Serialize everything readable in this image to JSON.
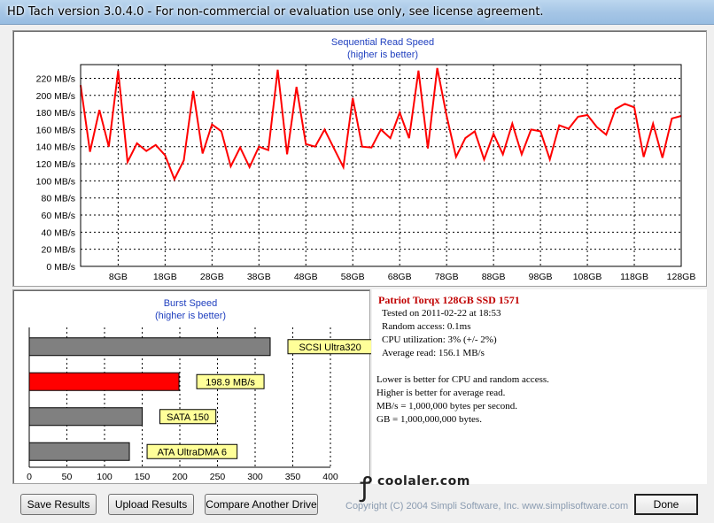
{
  "window": {
    "title": "HD Tach version 3.0.4.0  - For non-commercial or evaluation use only, see license agreement."
  },
  "sequential": {
    "title": "Sequential Read Speed",
    "subtitle": "(higher is better)",
    "chart_data": {
      "type": "line",
      "title": "Sequential Read Speed",
      "subtitle": "(higher is better)",
      "xlabel": "",
      "ylabel": "",
      "x_tick_labels": [
        "8GB",
        "18GB",
        "28GB",
        "38GB",
        "48GB",
        "58GB",
        "68GB",
        "78GB",
        "88GB",
        "98GB",
        "108GB",
        "118GB",
        "128GB"
      ],
      "y_tick_labels": [
        "0 MB/s",
        "20 MB/s",
        "40 MB/s",
        "60 MB/s",
        "80 MB/s",
        "100 MB/s",
        "120 MB/s",
        "140 MB/s",
        "160 MB/s",
        "180 MB/s",
        "200 MB/s",
        "220 MB/s"
      ],
      "xlim": [
        0,
        128
      ],
      "ylim": [
        0,
        236
      ],
      "grid": true,
      "color": "#ff0000",
      "x": [
        0,
        2,
        4,
        6,
        8,
        10,
        12,
        14,
        16,
        18,
        20,
        22,
        24,
        26,
        28,
        30,
        32,
        34,
        36,
        38,
        40,
        42,
        44,
        46,
        48,
        50,
        52,
        54,
        56,
        58,
        60,
        62,
        64,
        66,
        68,
        70,
        72,
        74,
        76,
        78,
        80,
        82,
        84,
        86,
        88,
        90,
        92,
        94,
        96,
        98,
        100,
        102,
        104,
        106,
        108,
        110,
        112,
        114,
        116,
        118,
        120,
        122,
        124,
        126,
        128
      ],
      "values": [
        212,
        134,
        183,
        140,
        229,
        122,
        144,
        135,
        142,
        130,
        102,
        124,
        205,
        132,
        166,
        158,
        117,
        139,
        116,
        140,
        136,
        230,
        131,
        210,
        143,
        140,
        160,
        138,
        116,
        197,
        140,
        139,
        160,
        150,
        180,
        150,
        229,
        138,
        232,
        176,
        128,
        150,
        158,
        125,
        155,
        131,
        167,
        131,
        160,
        158,
        125,
        165,
        161,
        175,
        177,
        163,
        154,
        184,
        190,
        186,
        128,
        167,
        127,
        173,
        176
      ]
    }
  },
  "burst": {
    "title": "Burst Speed",
    "subtitle": "(higher is better)",
    "chart_data": {
      "type": "bar",
      "orientation": "horizontal",
      "title": "Burst Speed",
      "subtitle": "(higher is better)",
      "categories": [
        "SCSI Ultra320",
        "198.9 MB/s",
        "SATA 150",
        "ATA UltraDMA 6"
      ],
      "values": [
        320,
        198.9,
        150,
        133
      ],
      "colors": [
        "#808080",
        "#ff0000",
        "#808080",
        "#808080"
      ],
      "xlim": [
        0,
        400
      ],
      "x_tick_labels": [
        "0",
        "50",
        "100",
        "150",
        "200",
        "250",
        "300",
        "350",
        "400"
      ],
      "grid": true
    }
  },
  "info": {
    "drive_name": "Patriot Torqx 128GB SSD 1571",
    "tested_on": "Tested on 2011-02-22 at 18:53",
    "random_access": "Random access: 0.1ms",
    "cpu_utilization": "CPU utilization: 3% (+/- 2%)",
    "average_read": "Average read: 156.1 MB/s",
    "note_1": "Lower is better for CPU and random access.",
    "note_2": "Higher is better for average read.",
    "note_3": "MB/s = 1,000,000 bytes per second.",
    "note_4": "GB = 1,000,000,000 bytes."
  },
  "watermark": {
    "text": "coolaler.com"
  },
  "buttons": {
    "save_label": "Save Results",
    "upload_label": "Upload Results",
    "compare_label": "Compare Another Drive",
    "done_label": "Done"
  },
  "copyright": "Copyright (C) 2004 Simpli Software, Inc. www.simplisoftware.com"
}
